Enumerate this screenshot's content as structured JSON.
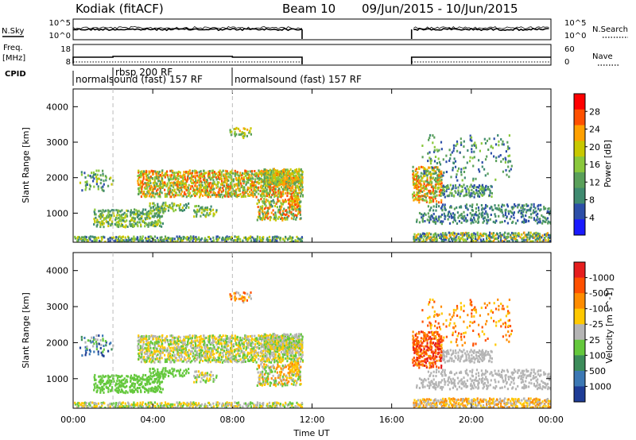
{
  "header": {
    "site": "Kodiak (fitACF)",
    "beam": "Beam 10",
    "dates": "09/Jun/2015 - 10/Jun/2015"
  },
  "panels": {
    "nsky": {
      "left_label": "N.Sky",
      "right_label": "N.Search",
      "left_ticks": [
        "10^5",
        "10^0"
      ],
      "right_ticks": [
        "10^5",
        "10^0"
      ]
    },
    "freq": {
      "left_label_1": "Freq.",
      "left_label_2": "[MHz]",
      "right_label": "Nave",
      "left_ticks": [
        "18",
        "8"
      ],
      "right_ticks": [
        "60",
        "0"
      ]
    },
    "cpid": {
      "label": "CPID",
      "entries": [
        {
          "text": "normalsound (fast) 157 RF",
          "start_hour": 0
        },
        {
          "text": "rbsp 200 RF",
          "start_hour": 2
        },
        {
          "text": "normalsound (fast) 157 RF",
          "start_hour": 8
        }
      ]
    }
  },
  "chart_data": [
    {
      "type": "heatmap",
      "name": "power",
      "ylabel": "Slant Range [km]",
      "ylim": [
        180,
        4500
      ],
      "yticks": [
        1000,
        2000,
        3000,
        4000
      ],
      "colorbar": {
        "label": "Power [dB]",
        "ticks": [
          "4",
          "8",
          "12",
          "16",
          "20",
          "24",
          "28"
        ],
        "colors": [
          "#1a1aff",
          "#2d4fa8",
          "#3f8a70",
          "#5aa05a",
          "#8ac83c",
          "#c8c800",
          "#ffa000",
          "#ff5000",
          "#ff0000"
        ]
      }
    },
    {
      "type": "heatmap",
      "name": "velocity",
      "ylabel": "Slant Range [km]",
      "xlabel": "Time UT",
      "ylim": [
        180,
        4500
      ],
      "yticks": [
        1000,
        2000,
        3000,
        4000
      ],
      "xticks": [
        "00:00",
        "04:00",
        "08:00",
        "12:00",
        "16:00",
        "20:00",
        "00:00"
      ],
      "xlim_hours": [
        0,
        24
      ],
      "data_gap_hours": [
        11.5,
        17.0
      ],
      "colorbar": {
        "label": "Velocity [m s^-1]",
        "ticks": [
          "1000",
          "500",
          "100",
          "25",
          "-25",
          "-100",
          "-500",
          "-1000"
        ],
        "colors": [
          "#1e3c96",
          "#3c78b4",
          "#3c8c5a",
          "#64c83c",
          "#b4b4b4",
          "#ffc800",
          "#ff8c00",
          "#ff5000",
          "#e61e1e"
        ]
      }
    }
  ]
}
